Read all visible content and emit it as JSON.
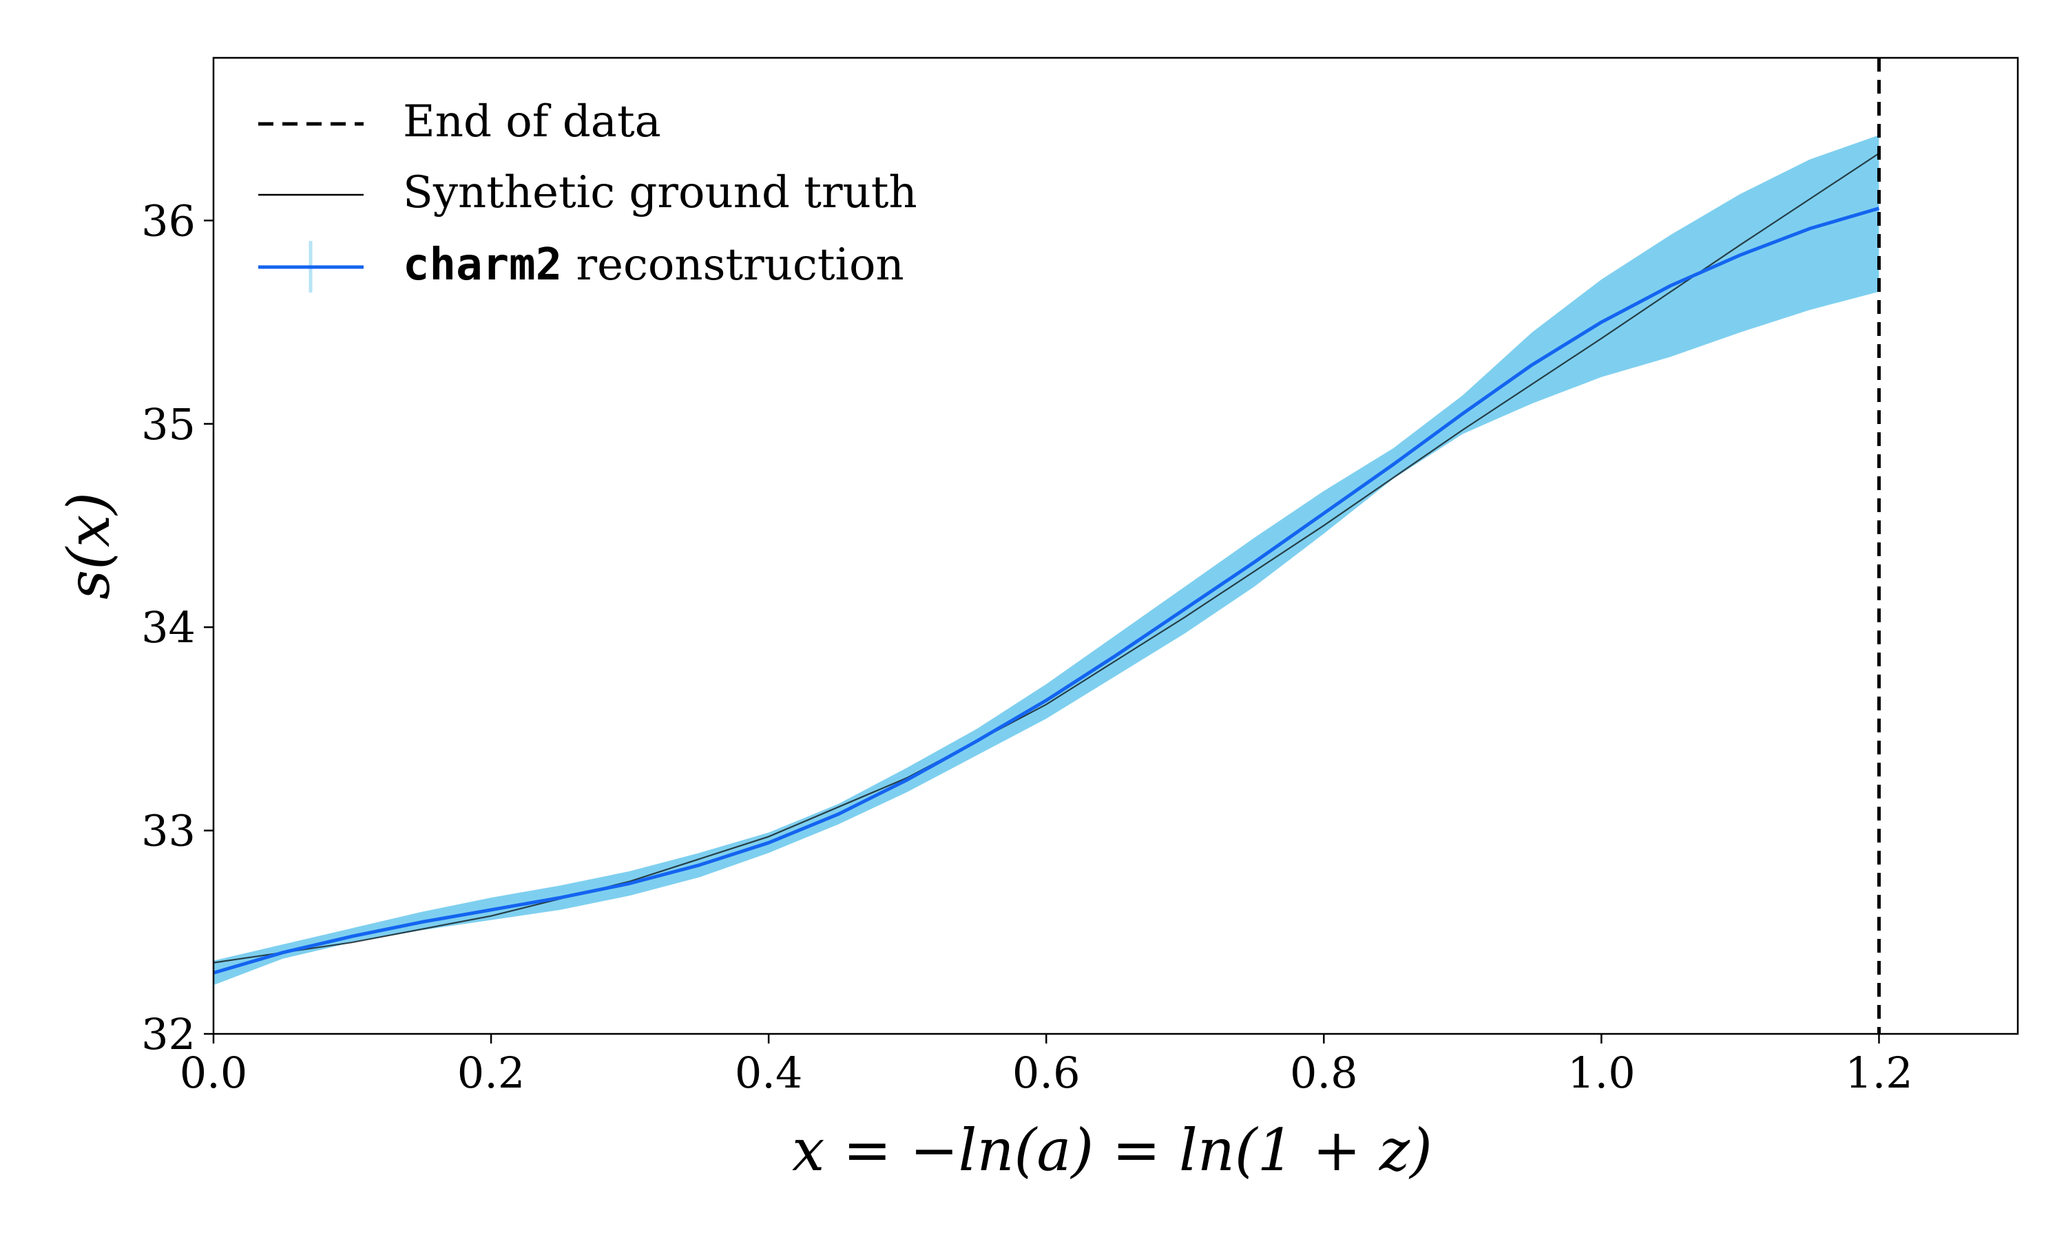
{
  "chart_data": {
    "type": "line",
    "xlabel": "x = −ln(a) = ln(1 + z)",
    "ylabel": "s(x)",
    "xlim": [
      0.0,
      1.3
    ],
    "ylim": [
      32.0,
      36.8
    ],
    "x_ticks": [
      0.0,
      0.2,
      0.4,
      0.6,
      0.8,
      1.0,
      1.2
    ],
    "x_tick_labels": [
      "0.0",
      "0.2",
      "0.4",
      "0.6",
      "0.8",
      "1.0",
      "1.2"
    ],
    "y_ticks": [
      32,
      33,
      34,
      35,
      36
    ],
    "y_tick_labels": [
      "32",
      "33",
      "34",
      "35",
      "36"
    ],
    "grid": false,
    "legend_position": "top-left",
    "colors": {
      "reconstruction": "#1464f0",
      "band": "#7ecfef",
      "ground_truth": "#000000",
      "end_of_data": "#000000"
    },
    "end_of_data_x": 1.2,
    "legend": [
      {
        "name": "End of data",
        "style": "dashed"
      },
      {
        "name": "Synthetic ground truth",
        "style": "thin-solid"
      },
      {
        "name_code": "charm2",
        "name_rest": " reconstruction",
        "style": "solid-with-band"
      }
    ],
    "series": [
      {
        "name": "Synthetic ground truth",
        "x": [
          0.0,
          0.1,
          0.2,
          0.3,
          0.4,
          0.5,
          0.6,
          0.7,
          0.8,
          0.9,
          1.0,
          1.1,
          1.2
        ],
        "y": [
          32.35,
          32.45,
          32.58,
          32.75,
          32.97,
          33.26,
          33.62,
          34.05,
          34.5,
          34.97,
          35.42,
          35.88,
          36.33
        ]
      },
      {
        "name": "charm2 reconstruction",
        "x": [
          0.0,
          0.05,
          0.1,
          0.15,
          0.2,
          0.25,
          0.3,
          0.35,
          0.4,
          0.45,
          0.5,
          0.55,
          0.6,
          0.65,
          0.7,
          0.75,
          0.8,
          0.85,
          0.9,
          0.95,
          1.0,
          1.05,
          1.1,
          1.15,
          1.2
        ],
        "y": [
          32.3,
          32.4,
          32.48,
          32.55,
          32.61,
          32.67,
          32.74,
          32.83,
          32.94,
          33.08,
          33.25,
          33.44,
          33.64,
          33.86,
          34.09,
          34.32,
          34.56,
          34.8,
          35.05,
          35.29,
          35.5,
          35.68,
          35.83,
          35.96,
          36.06
        ],
        "lower": [
          32.24,
          32.37,
          32.45,
          32.51,
          32.56,
          32.61,
          32.68,
          32.77,
          32.89,
          33.03,
          33.19,
          33.37,
          33.55,
          33.76,
          33.97,
          34.2,
          34.46,
          34.73,
          34.95,
          35.1,
          35.23,
          35.33,
          35.45,
          35.56,
          35.65
        ],
        "upper": [
          32.36,
          32.44,
          32.52,
          32.6,
          32.67,
          32.73,
          32.8,
          32.89,
          32.99,
          33.13,
          33.31,
          33.5,
          33.72,
          33.96,
          34.2,
          34.44,
          34.67,
          34.88,
          35.14,
          35.45,
          35.71,
          35.93,
          36.13,
          36.3,
          36.42
        ]
      }
    ]
  }
}
